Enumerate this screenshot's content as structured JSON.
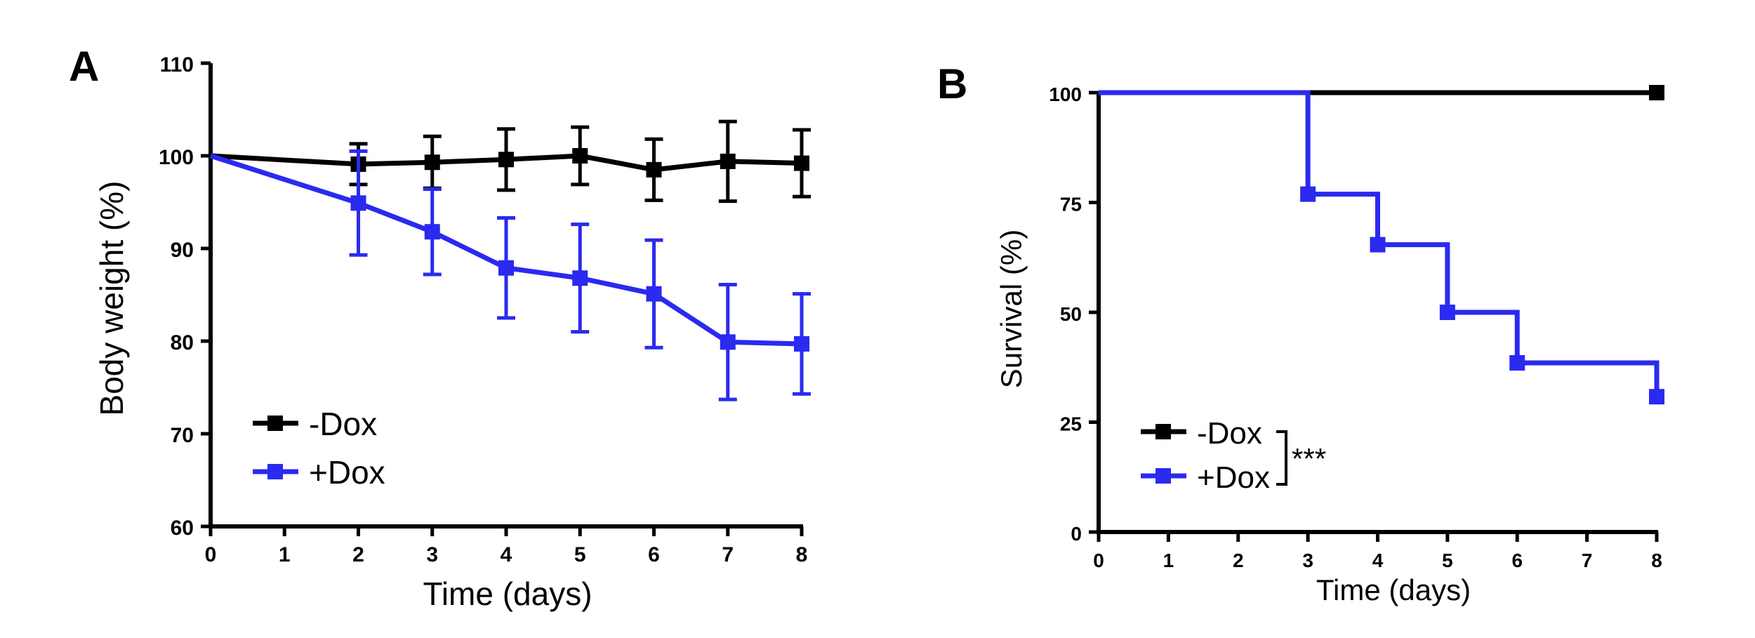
{
  "chart_data": [
    {
      "panel": "A",
      "type": "line",
      "xlabel": "Time (days)",
      "ylabel": "Body weight (%)",
      "xlim": [
        0,
        8
      ],
      "ylim": [
        60,
        110
      ],
      "xticks": [
        "0",
        "1",
        "2",
        "3",
        "4",
        "5",
        "6",
        "7",
        "8"
      ],
      "yticks": [
        "60",
        "70",
        "80",
        "90",
        "100",
        "110"
      ],
      "legend_position": "bottom-left",
      "series": [
        {
          "name": "-Dox",
          "color": "#000000",
          "x": [
            0,
            2,
            3,
            4,
            5,
            6,
            7,
            8
          ],
          "values": [
            100,
            99.1,
            99.3,
            99.6,
            100,
            98.5,
            99.4,
            99.2
          ],
          "error": [
            0,
            2.2,
            2.8,
            3.3,
            3.1,
            3.3,
            4.3,
            3.6
          ]
        },
        {
          "name": "+Dox",
          "color": "#2a2af0",
          "x": [
            0,
            2,
            3,
            4,
            5,
            6,
            7,
            8
          ],
          "values": [
            100,
            94.9,
            91.8,
            87.9,
            86.8,
            85.1,
            79.9,
            79.7
          ],
          "error": [
            0,
            5.6,
            4.6,
            5.4,
            5.8,
            5.8,
            6.2,
            5.4
          ]
        }
      ]
    },
    {
      "panel": "B",
      "type": "line",
      "step": true,
      "xlabel": "Time (days)",
      "ylabel": "Survival (%)",
      "xlim": [
        0,
        8
      ],
      "ylim": [
        0,
        100
      ],
      "xticks": [
        "0",
        "1",
        "2",
        "3",
        "4",
        "5",
        "6",
        "7",
        "8"
      ],
      "yticks": [
        "0",
        "25",
        "50",
        "75",
        "100"
      ],
      "legend_position": "bottom-left",
      "significance": "***",
      "series": [
        {
          "name": "-Dox",
          "color": "#000000",
          "x": [
            0,
            8
          ],
          "values": [
            100,
            100
          ],
          "markers_x": [
            8
          ],
          "markers_y": [
            100
          ]
        },
        {
          "name": "+Dox",
          "color": "#2a2af0",
          "x": [
            0,
            3,
            4,
            5,
            6,
            8
          ],
          "values": [
            100,
            76.9,
            65.4,
            50,
            38.5,
            30.8
          ],
          "markers_x": [
            3,
            4,
            5,
            6,
            8
          ],
          "markers_y": [
            76.9,
            65.4,
            50,
            38.5,
            30.8
          ]
        }
      ]
    }
  ]
}
